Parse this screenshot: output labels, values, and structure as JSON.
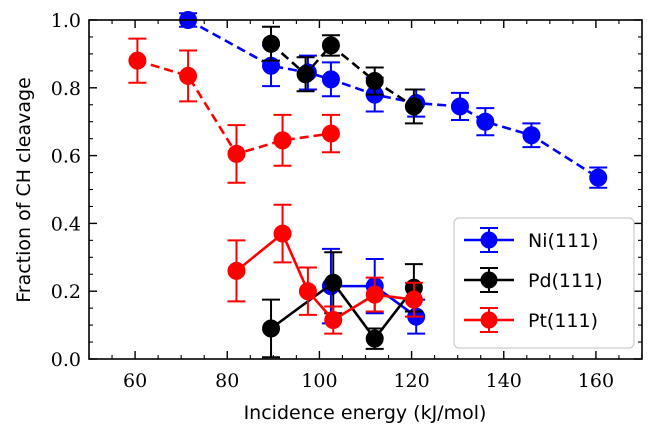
{
  "chart_data": {
    "type": "scatter",
    "title": "",
    "xlabel": "Incidence energy (kJ/mol)",
    "ylabel": "Fraction of CH cleavage",
    "xlim": [
      50,
      170
    ],
    "ylim": [
      0.0,
      1.0
    ],
    "xticks": [
      60,
      80,
      100,
      120,
      140,
      160
    ],
    "yticks": [
      0.0,
      0.2,
      0.4,
      0.6,
      0.8,
      1.0
    ],
    "xtick_labels": [
      "60",
      "80",
      "100",
      "120",
      "140",
      "160"
    ],
    "ytick_labels": [
      "0.0",
      "0.2",
      "0.4",
      "0.6",
      "0.8",
      "1.0"
    ],
    "grid": false,
    "legend_position": "lower-right",
    "series": [
      {
        "name": "Ni(111)",
        "color": "#0000ff",
        "marker": "circle",
        "segments": [
          {
            "style": "dashed",
            "points": [
              {
                "x": 71.5,
                "y": 1.0,
                "err": 0.02
              },
              {
                "x": 89.5,
                "y": 0.865,
                "err": 0.06
              },
              {
                "x": 97.5,
                "y": 0.845,
                "err": 0.05
              },
              {
                "x": 102.5,
                "y": 0.825,
                "err": 0.05
              },
              {
                "x": 112,
                "y": 0.78,
                "err": 0.05
              },
              {
                "x": 121,
                "y": 0.755,
                "err": 0.04
              },
              {
                "x": 130.5,
                "y": 0.745,
                "err": 0.04
              },
              {
                "x": 136,
                "y": 0.7,
                "err": 0.04
              },
              {
                "x": 146,
                "y": 0.66,
                "err": 0.035
              },
              {
                "x": 160.5,
                "y": 0.535,
                "err": 0.03
              }
            ]
          },
          {
            "style": "solid",
            "points": [
              {
                "x": 102.5,
                "y": 0.215,
                "err": 0.11
              },
              {
                "x": 112,
                "y": 0.215,
                "err": 0.08
              },
              {
                "x": 121,
                "y": 0.125,
                "err": 0.05
              }
            ]
          }
        ]
      },
      {
        "name": "Pd(111)",
        "color": "#000000",
        "marker": "circle",
        "segments": [
          {
            "style": "dashed",
            "points": [
              {
                "x": 89.5,
                "y": 0.93,
                "err": 0.05
              },
              {
                "x": 97,
                "y": 0.84,
                "err": 0.05
              },
              {
                "x": 102.5,
                "y": 0.925,
                "err": 0.03
              },
              {
                "x": 112,
                "y": 0.82,
                "err": 0.04
              },
              {
                "x": 120.5,
                "y": 0.745,
                "err": 0.05
              }
            ]
          },
          {
            "style": "solid",
            "points": [
              {
                "x": 89.5,
                "y": 0.09,
                "err": 0.085
              },
              {
                "x": 103,
                "y": 0.225,
                "err": 0.09
              },
              {
                "x": 112,
                "y": 0.06,
                "err": 0.03
              },
              {
                "x": 120.5,
                "y": 0.21,
                "err": 0.07
              }
            ]
          }
        ]
      },
      {
        "name": "Pt(111)",
        "color": "#ff0000",
        "marker": "circle",
        "segments": [
          {
            "style": "dashed",
            "points": [
              {
                "x": 60.5,
                "y": 0.88,
                "err": 0.065
              },
              {
                "x": 71.5,
                "y": 0.835,
                "err": 0.075
              },
              {
                "x": 82,
                "y": 0.605,
                "err": 0.085
              },
              {
                "x": 92,
                "y": 0.645,
                "err": 0.075
              },
              {
                "x": 102.5,
                "y": 0.665,
                "err": 0.055
              }
            ]
          },
          {
            "style": "solid",
            "points": [
              {
                "x": 82,
                "y": 0.26,
                "err": 0.09
              },
              {
                "x": 92,
                "y": 0.37,
                "err": 0.085
              },
              {
                "x": 97.5,
                "y": 0.2,
                "err": 0.07
              },
              {
                "x": 103,
                "y": 0.115,
                "err": 0.04
              },
              {
                "x": 112,
                "y": 0.19,
                "err": 0.05
              },
              {
                "x": 120.5,
                "y": 0.175,
                "err": 0.05
              }
            ]
          }
        ]
      }
    ]
  }
}
